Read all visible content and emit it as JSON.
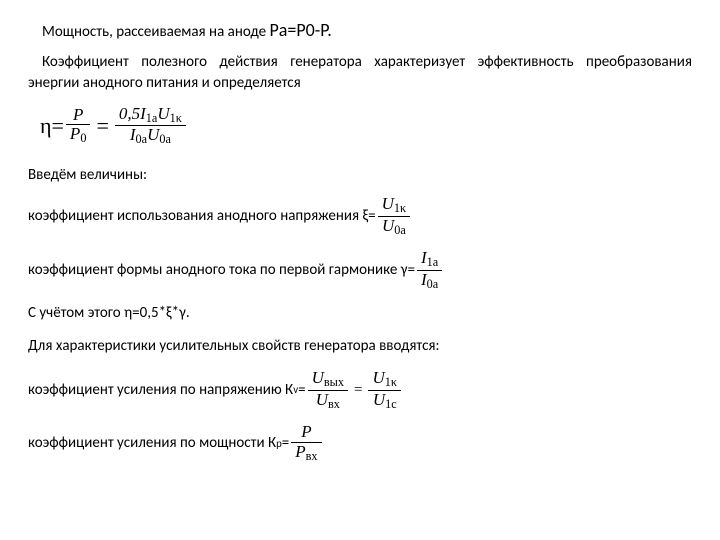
{
  "text": {
    "p1_pre": "Мощность, рассеиваемая на аноде ",
    "p1_eq": "Pа=P0-P.",
    "p2": "Коэффициент полезного действия генератора характеризует эффективность преобразования энергии анодного питания и определяется",
    "eta_label": "η=",
    "intro": "Введём величины:",
    "l1": "коэффициент использования анодного напряжения ξ=",
    "l2": "коэффициент формы анодного тока по первой гармонике γ=",
    "l3": "С учётом этого η=0,5*ξ*γ.",
    "l4": "Для характеристики усилительных свойств генератора вводятся:",
    "l5": "коэффициент усиления по напряжению К",
    "l5_sub": "v",
    "l5_eq": "=",
    "l6": "коэффициент усиления по мощности К",
    "l6_sub": "р",
    "l6_eq": "="
  },
  "formulas": {
    "eta": {
      "f1_num": "P",
      "f1_den": "P",
      "f1_den_sub": "0",
      "f2_num_a": "0,5",
      "f2_num_b": "I",
      "f2_num_b_sub": "1a",
      "f2_num_c": "U",
      "f2_num_c_sub": "1κ",
      "f2_den_a": "I",
      "f2_den_a_sub": "0a",
      "f2_den_b": "U",
      "f2_den_b_sub": "0a"
    },
    "xi": {
      "num": "U",
      "num_sub": "1κ",
      "den": "U",
      "den_sub": "0a"
    },
    "gamma": {
      "num": "I",
      "num_sub": "1a",
      "den": "I",
      "den_sub": "0a"
    },
    "kv": {
      "f1_num": "U",
      "f1_num_sub": "вых",
      "f1_den": "U",
      "f1_den_sub": "вх",
      "f2_num": "U",
      "f2_num_sub": "1κ",
      "f2_den": "U",
      "f2_den_sub": "1c"
    },
    "kp": {
      "num": "P",
      "den": "P",
      "den_sub": "вх"
    }
  },
  "style": {
    "text_color": "#000000",
    "bg_color": "#ffffff",
    "body_fontsize": 15,
    "formula_fontsize": 17
  }
}
